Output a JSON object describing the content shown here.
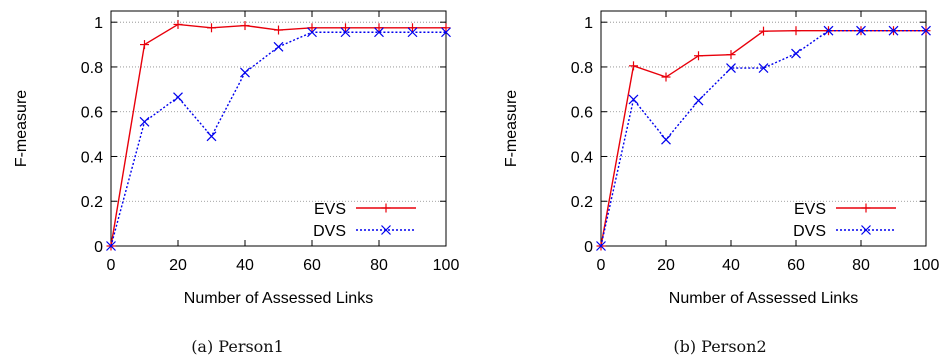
{
  "chart_data": [
    {
      "type": "line",
      "caption": "(a) Person1",
      "xlabel": "Number of Assessed Links",
      "ylabel": "F-measure",
      "xlim": [
        0,
        100
      ],
      "ylim": [
        0,
        1.05
      ],
      "xticks": [
        0,
        20,
        40,
        60,
        80,
        100
      ],
      "yticks": [
        0,
        0.2,
        0.4,
        0.6,
        0.8,
        1
      ],
      "ytick_labels": [
        "0",
        "0.2",
        "0.4",
        "0.6",
        "0.8",
        "1"
      ],
      "grid": "horizontal dotted",
      "legend_position": "bottom-right",
      "x": [
        0,
        10,
        20,
        30,
        40,
        50,
        60,
        70,
        80,
        90,
        100
      ],
      "series": [
        {
          "name": "EVS",
          "color": "#e8000b",
          "marker": "plus",
          "style": "solid",
          "values": [
            0,
            0.9,
            0.99,
            0.975,
            0.985,
            0.965,
            0.975,
            0.975,
            0.975,
            0.975,
            0.975
          ]
        },
        {
          "name": "DVS",
          "color": "#0000ee",
          "marker": "cross",
          "style": "dotted",
          "values": [
            0,
            0.555,
            0.665,
            0.49,
            0.775,
            0.89,
            0.955,
            0.955,
            0.955,
            0.955,
            0.955
          ]
        }
      ]
    },
    {
      "type": "line",
      "caption": "(b) Person2",
      "xlabel": "Number of Assessed Links",
      "ylabel": "F-measure",
      "xlim": [
        0,
        100
      ],
      "ylim": [
        0,
        1.05
      ],
      "xticks": [
        0,
        20,
        40,
        60,
        80,
        100
      ],
      "yticks": [
        0,
        0.2,
        0.4,
        0.6,
        0.8,
        1
      ],
      "ytick_labels": [
        "0",
        "0.2",
        "0.4",
        "0.6",
        "0.8",
        "1"
      ],
      "grid": "horizontal dotted",
      "legend_position": "bottom-right",
      "x": [
        0,
        10,
        20,
        30,
        40,
        50,
        60,
        70,
        80,
        90,
        100
      ],
      "series": [
        {
          "name": "EVS",
          "color": "#e8000b",
          "marker": "plus",
          "style": "solid",
          "values": [
            0,
            0.805,
            0.755,
            0.85,
            0.855,
            0.96,
            0.962,
            0.962,
            0.962,
            0.962,
            0.962
          ]
        },
        {
          "name": "DVS",
          "color": "#0000ee",
          "marker": "cross",
          "style": "dotted",
          "values": [
            0,
            0.655,
            0.475,
            0.65,
            0.795,
            0.795,
            0.86,
            0.962,
            0.962,
            0.962,
            0.962
          ]
        }
      ]
    }
  ]
}
